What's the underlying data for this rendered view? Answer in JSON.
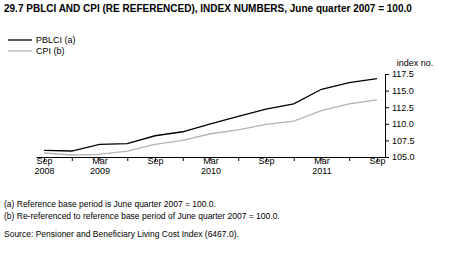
{
  "chart_data": {
    "type": "line",
    "title": "29.7 PBLCI AND CPI (RE REFERENCED), INDEX NUMBERS, June quarter 2007 = 100.0",
    "y_label": "index no.",
    "categories": [
      "Sep 2008",
      null,
      "Mar 2009",
      null,
      "Sep",
      null,
      "Mar 2010",
      null,
      "Sep",
      null,
      "Mar 2011",
      null,
      "Sep"
    ],
    "series": [
      {
        "name": "PBLCI (a)",
        "color": "#000000",
        "values": [
          106.0,
          105.9,
          106.9,
          107.0,
          108.2,
          108.8,
          110.0,
          111.1,
          112.2,
          113.0,
          115.2,
          116.2,
          116.8
        ]
      },
      {
        "name": "CPI (b)",
        "color": "#b3b3b3",
        "values": [
          105.6,
          105.3,
          105.4,
          105.9,
          106.9,
          107.5,
          108.5,
          109.1,
          109.9,
          110.4,
          112.0,
          113.0,
          113.6
        ]
      }
    ],
    "ylim": [
      105,
      117.5
    ],
    "yticks": [
      {
        "value": 105,
        "label": "105.0"
      },
      {
        "value": 107.5,
        "label": "107.5"
      },
      {
        "value": 110,
        "label": "110.0"
      },
      {
        "value": 112.5,
        "label": "112.5"
      },
      {
        "value": 115,
        "label": "115.0"
      },
      {
        "value": 117.5,
        "label": "117.5"
      }
    ],
    "grid": false,
    "legend": "upper left",
    "annotations": [
      "(a) Reference base period is June quarter 2007 = 100.0.",
      "(b) Re-referenced to reference base period of June quarter 2007 = 100.0.",
      "Source: Pensioner and Beneficiary Living Cost Index (6467.0)."
    ]
  }
}
